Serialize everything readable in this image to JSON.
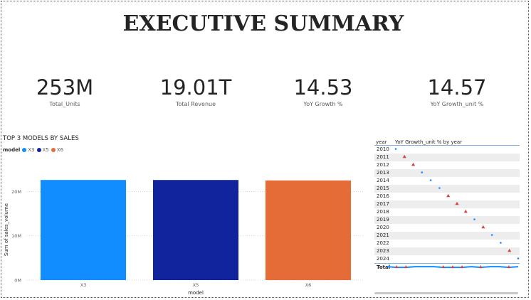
{
  "page": {
    "title": "EXECUTIVE SUMMARY"
  },
  "kpis": [
    {
      "value": "253M",
      "label": "Total_Units"
    },
    {
      "value": "19.01T",
      "label": "Total Revenue"
    },
    {
      "value": "14.53",
      "label": "YoY Growth %"
    },
    {
      "value": "14.57",
      "label": "YoY Growth_unit %"
    }
  ],
  "bar_chart": {
    "title": "TOP 3 MODELS BY SALES",
    "legend_title": "model",
    "legend": [
      {
        "name": "X3",
        "color": "#118dff"
      },
      {
        "name": "X5",
        "color": "#12239e"
      },
      {
        "name": "X6",
        "color": "#e66c37"
      }
    ]
  },
  "matrix": {
    "col_year": "year",
    "col_value": "YoY Growth_unit % by year",
    "rows": [
      "2010",
      "2011",
      "2012",
      "2013",
      "2014",
      "2015",
      "2016",
      "2017",
      "2018",
      "2019",
      "2020",
      "2021",
      "2022",
      "2023",
      "2024"
    ],
    "total_label": "Total",
    "colors": {
      "up": "#118dff",
      "down": "#d64541"
    }
  },
  "chart_data": {
    "type": "bar",
    "categories": [
      "X3",
      "X5",
      "X6"
    ],
    "values": [
      22.6,
      22.6,
      22.5
    ],
    "colors": [
      "#118dff",
      "#12239e",
      "#e66c37"
    ],
    "title": "TOP 3 MODELS BY SALES",
    "xlabel": "model",
    "ylabel": "Sum of sales_volume",
    "y_ticks": [
      0,
      10,
      20
    ],
    "y_tick_labels": [
      "0M",
      "10M",
      "20M"
    ],
    "ylim": [
      0,
      26
    ],
    "grid": true,
    "legend": "top-left"
  }
}
